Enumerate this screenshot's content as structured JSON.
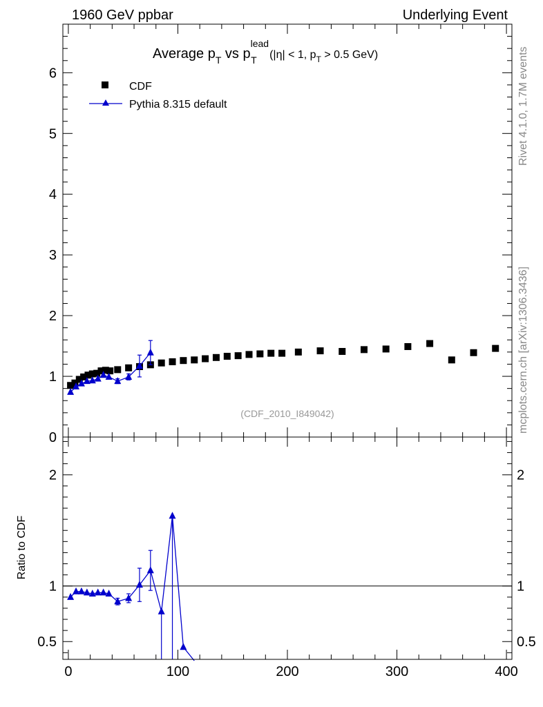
{
  "header": {
    "left": "1960 GeV ppbar",
    "right": "Underlying Event"
  },
  "side": {
    "rivet": "Rivet 4.1.0,  1.7M events",
    "mcplots": "mcplots.cern.ch [arXiv:1306.3436]"
  },
  "chart_data": [
    {
      "type": "scatter",
      "title": "Average p_T vs p_T^lead (|η| < 1, p_T > 0.5 GeV)",
      "analysis": "(CDF_2010_I849042)",
      "legend_position": "top-left",
      "xlim": [
        -5,
        405
      ],
      "ylim": [
        0,
        6.8
      ],
      "y_ticks": [
        0,
        1,
        2,
        3,
        4,
        5,
        6
      ],
      "x_ticks": [
        0,
        100,
        200,
        300,
        400
      ],
      "series": [
        {
          "name": "CDF",
          "marker": "square",
          "color": "#000000",
          "x": [
            2,
            6,
            10,
            14,
            18,
            22,
            26,
            30,
            34,
            38,
            45,
            55,
            65,
            75,
            85,
            95,
            105,
            115,
            125,
            135,
            145,
            155,
            165,
            175,
            185,
            195,
            210,
            230,
            250,
            270,
            290,
            310,
            330,
            350,
            370,
            390
          ],
          "y": [
            0.85,
            0.89,
            0.95,
            0.99,
            1.02,
            1.04,
            1.05,
            1.09,
            1.1,
            1.09,
            1.11,
            1.14,
            1.16,
            1.19,
            1.22,
            1.24,
            1.26,
            1.27,
            1.29,
            1.31,
            1.33,
            1.34,
            1.36,
            1.37,
            1.38,
            1.38,
            1.4,
            1.42,
            1.41,
            1.44,
            1.45,
            1.49,
            1.54,
            1.27,
            1.39,
            1.46
          ],
          "error": []
        },
        {
          "name": "Pythia 8.315 default",
          "marker": "triangle",
          "color": "#0000cc",
          "x": [
            2,
            7,
            12,
            17,
            22,
            27,
            32,
            37,
            45,
            55,
            65,
            75
          ],
          "y": [
            0.74,
            0.83,
            0.88,
            0.92,
            0.93,
            0.96,
            1.02,
            0.99,
            0.92,
            0.99,
            1.17,
            1.39
          ],
          "error": [
            0.03,
            0.02,
            0.02,
            0.02,
            0.02,
            0.02,
            0.03,
            0.03,
            0.04,
            0.05,
            0.18,
            0.2
          ]
        }
      ]
    },
    {
      "type": "line",
      "ylabel": "Ratio to CDF",
      "reference": 1,
      "xlim": [
        -5,
        405
      ],
      "ylim": [
        0.34,
        2.34
      ],
      "y_ticks": [
        0.5,
        1,
        2
      ],
      "x_ticks": [
        0,
        100,
        200,
        300,
        400
      ],
      "series": [
        {
          "name": "Pythia 8.315 default",
          "color": "#0000cc",
          "x": [
            2,
            7,
            12,
            17,
            22,
            27,
            32,
            37,
            45,
            55,
            65,
            75,
            85,
            95,
            105,
            115
          ],
          "y": [
            0.9,
            0.95,
            0.95,
            0.94,
            0.93,
            0.94,
            0.94,
            0.93,
            0.86,
            0.89,
            1.01,
            1.14,
            0.77,
            1.63,
            0.45,
            0.0
          ],
          "error": [
            0.02,
            0.02,
            0.02,
            0.02,
            0.02,
            0.02,
            0.02,
            0.02,
            0.03,
            0.04,
            0.15,
            0.18,
            0.0,
            0.0,
            0.0,
            0.0
          ],
          "drop_below": [
            false,
            false,
            false,
            false,
            false,
            false,
            false,
            false,
            false,
            false,
            false,
            false,
            true,
            true,
            false,
            false
          ]
        }
      ]
    }
  ]
}
